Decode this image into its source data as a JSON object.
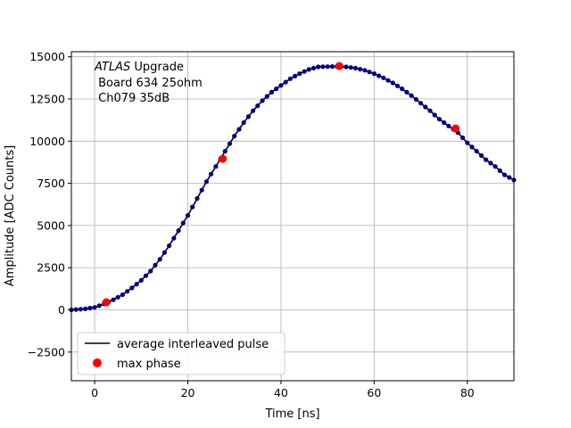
{
  "chart_data": {
    "type": "scatter",
    "xlabel": "Time [ns]",
    "ylabel": "Amplitude [ADC Counts]",
    "xlim": [
      -5,
      90
    ],
    "ylim": [
      -4200,
      15300
    ],
    "xticks": [
      0,
      20,
      40,
      60,
      80
    ],
    "yticks": [
      -2500,
      0,
      2500,
      5000,
      7500,
      10000,
      12500,
      15000
    ],
    "xtick_labels": [
      "0",
      "20",
      "40",
      "60",
      "80"
    ],
    "ytick_labels": [
      "−2500",
      "0",
      "2500",
      "5000",
      "7500",
      "10000",
      "12500",
      "15000"
    ],
    "grid": true,
    "legend_placement": "lower-left",
    "annotation": {
      "line1_italic": "ATLAS",
      "line1_rest": " Upgrade",
      "line2": " Board 634 25ohm",
      "line3": " Ch079 35dB"
    },
    "series": [
      {
        "name": "average interleaved pulse",
        "style": "line",
        "color": "#000000",
        "marker_color": "#00008b",
        "points": [
          [
            -5,
            0
          ],
          [
            -2,
            60
          ],
          [
            0,
            150
          ],
          [
            2,
            350
          ],
          [
            4,
            600
          ],
          [
            6,
            900
          ],
          [
            8,
            1300
          ],
          [
            10,
            1750
          ],
          [
            12,
            2300
          ],
          [
            14,
            3000
          ],
          [
            16,
            3800
          ],
          [
            18,
            4700
          ],
          [
            20,
            5600
          ],
          [
            22,
            6600
          ],
          [
            24,
            7600
          ],
          [
            26,
            8500
          ],
          [
            28,
            9400
          ],
          [
            30,
            10300
          ],
          [
            32,
            11100
          ],
          [
            34,
            11800
          ],
          [
            36,
            12400
          ],
          [
            38,
            12900
          ],
          [
            40,
            13300
          ],
          [
            42,
            13700
          ],
          [
            44,
            14000
          ],
          [
            46,
            14250
          ],
          [
            48,
            14400
          ],
          [
            50,
            14420
          ],
          [
            52,
            14430
          ],
          [
            54,
            14400
          ],
          [
            56,
            14330
          ],
          [
            58,
            14200
          ],
          [
            60,
            14000
          ],
          [
            62,
            13750
          ],
          [
            64,
            13450
          ],
          [
            66,
            13100
          ],
          [
            68,
            12700
          ],
          [
            70,
            12250
          ],
          [
            72,
            11800
          ],
          [
            74,
            11300
          ],
          [
            76,
            10900
          ],
          [
            78,
            10500
          ],
          [
            80,
            9900
          ],
          [
            82,
            9400
          ],
          [
            84,
            8900
          ],
          [
            86,
            8500
          ],
          [
            88,
            8000
          ],
          [
            90,
            7700
          ]
        ]
      },
      {
        "name": "max phase",
        "style": "marker",
        "color": "#ff0000",
        "points": [
          [
            2.5,
            450
          ],
          [
            27.5,
            8950
          ],
          [
            52.5,
            14450
          ],
          [
            77.5,
            10750
          ]
        ]
      }
    ]
  }
}
